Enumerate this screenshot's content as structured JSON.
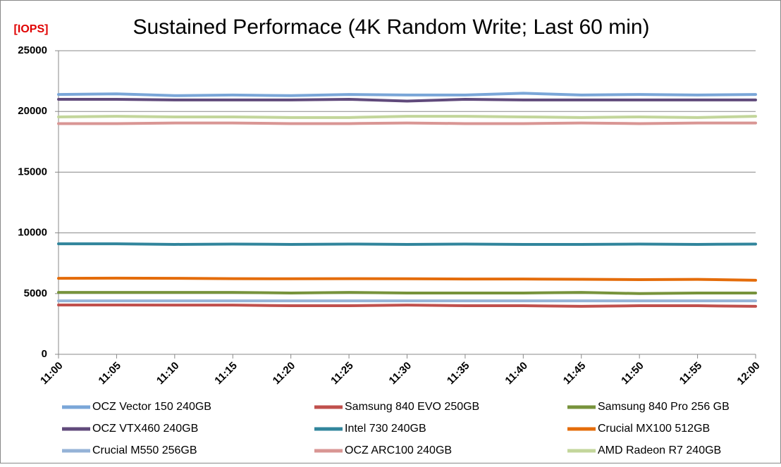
{
  "chart_data": {
    "type": "line",
    "title": "Sustained Performace (4K Random Write; Last 60 min)",
    "y_axis_label": "[IOPS]",
    "categories": [
      "11:00",
      "11:05",
      "11:10",
      "11:15",
      "11:20",
      "11:25",
      "11:30",
      "11:35",
      "11:40",
      "11:45",
      "11:50",
      "11:55",
      "12:00"
    ],
    "ylim": [
      0,
      25000
    ],
    "yticks": [
      0,
      5000,
      10000,
      15000,
      20000,
      25000
    ],
    "grid": true,
    "legend": "bottom",
    "series": [
      {
        "name": "OCZ Vector 150 240GB",
        "color": "#7aa6d8",
        "values": [
          21400,
          21450,
          21300,
          21350,
          21300,
          21400,
          21350,
          21350,
          21500,
          21350,
          21400,
          21350,
          21400
        ]
      },
      {
        "name": "Samsung 840 EVO 250GB",
        "color": "#c0504d",
        "values": [
          4060,
          4060,
          4050,
          4050,
          4000,
          4000,
          4050,
          4000,
          4000,
          3950,
          4000,
          4000,
          3950
        ]
      },
      {
        "name": "Samsung 840 Pro 256 GB",
        "color": "#77933c",
        "values": [
          5100,
          5100,
          5100,
          5100,
          5050,
          5100,
          5050,
          5050,
          5050,
          5100,
          5000,
          5050,
          5050
        ]
      },
      {
        "name": "OCZ VTX460 240GB",
        "color": "#604a7b",
        "values": [
          21000,
          21000,
          20950,
          20950,
          20950,
          21000,
          20850,
          21000,
          20950,
          20950,
          20950,
          20950,
          20950
        ]
      },
      {
        "name": "Intel 730 240GB",
        "color": "#31859c",
        "values": [
          9100,
          9100,
          9050,
          9080,
          9050,
          9080,
          9050,
          9080,
          9050,
          9050,
          9080,
          9050,
          9080
        ]
      },
      {
        "name": "Crucial MX100 512GB",
        "color": "#e46c0a",
        "values": [
          6260,
          6270,
          6260,
          6230,
          6220,
          6230,
          6220,
          6200,
          6200,
          6180,
          6150,
          6170,
          6100
        ]
      },
      {
        "name": "Crucial M550 256GB",
        "color": "#95b3d7",
        "values": [
          4400,
          4400,
          4400,
          4400,
          4400,
          4400,
          4400,
          4400,
          4400,
          4400,
          4400,
          4400,
          4400
        ]
      },
      {
        "name": "OCZ  ARC100 240GB",
        "color": "#d99694",
        "values": [
          19000,
          19000,
          19050,
          19050,
          19000,
          19000,
          19050,
          19000,
          19000,
          19050,
          19000,
          19050,
          19050
        ]
      },
      {
        "name": "AMD Radeon R7 240GB",
        "color": "#c3d69b",
        "values": [
          19550,
          19600,
          19550,
          19550,
          19500,
          19500,
          19600,
          19600,
          19550,
          19500,
          19550,
          19500,
          19600
        ]
      }
    ]
  }
}
